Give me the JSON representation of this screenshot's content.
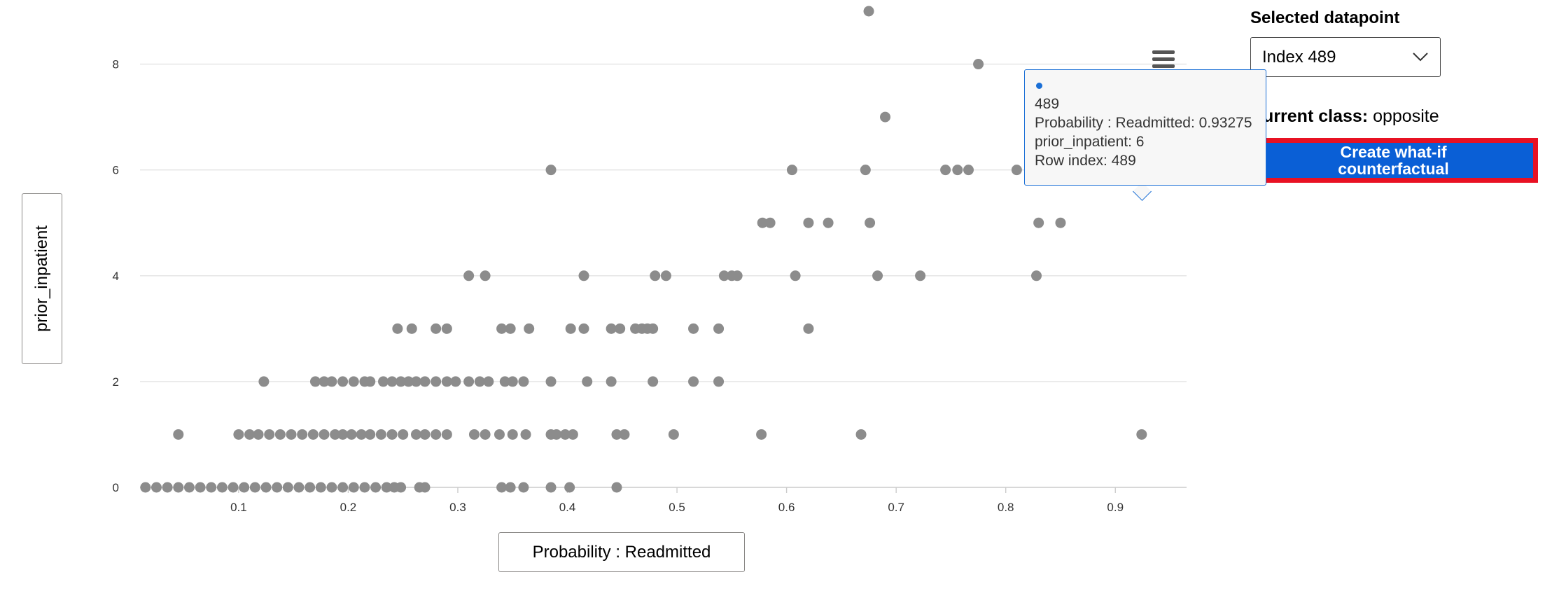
{
  "chart_data": {
    "type": "scatter",
    "xlabel": "Probability : Readmitted",
    "ylabel": "prior_inpatient",
    "xlim": [
      0.01,
      0.965
    ],
    "ylim": [
      0,
      9
    ],
    "x_ticks": [
      0.1,
      0.2,
      0.3,
      0.4,
      0.5,
      0.6,
      0.7,
      0.8,
      0.9
    ],
    "y_ticks": [
      0,
      2,
      4,
      6,
      8
    ],
    "grid": "horizontal",
    "point_color": "#8c8c8c",
    "highlight_color": "#0a5fd6",
    "points": [
      [
        0.675,
        9
      ],
      [
        0.775,
        8
      ],
      [
        0.69,
        7
      ],
      [
        0.385,
        6
      ],
      [
        0.605,
        6
      ],
      [
        0.672,
        6
      ],
      [
        0.745,
        6
      ],
      [
        0.756,
        6
      ],
      [
        0.766,
        6
      ],
      [
        0.81,
        6
      ],
      [
        0.578,
        5
      ],
      [
        0.585,
        5
      ],
      [
        0.62,
        5
      ],
      [
        0.638,
        5
      ],
      [
        0.676,
        5
      ],
      [
        0.83,
        5
      ],
      [
        0.85,
        5
      ],
      [
        0.31,
        4
      ],
      [
        0.325,
        4
      ],
      [
        0.415,
        4
      ],
      [
        0.48,
        4
      ],
      [
        0.49,
        4
      ],
      [
        0.543,
        4
      ],
      [
        0.55,
        4
      ],
      [
        0.555,
        4
      ],
      [
        0.608,
        4
      ],
      [
        0.683,
        4
      ],
      [
        0.722,
        4
      ],
      [
        0.828,
        4
      ],
      [
        0.245,
        3
      ],
      [
        0.258,
        3
      ],
      [
        0.28,
        3
      ],
      [
        0.29,
        3
      ],
      [
        0.34,
        3
      ],
      [
        0.348,
        3
      ],
      [
        0.365,
        3
      ],
      [
        0.403,
        3
      ],
      [
        0.415,
        3
      ],
      [
        0.44,
        3
      ],
      [
        0.448,
        3
      ],
      [
        0.462,
        3
      ],
      [
        0.468,
        3
      ],
      [
        0.473,
        3
      ],
      [
        0.478,
        3
      ],
      [
        0.515,
        3
      ],
      [
        0.538,
        3
      ],
      [
        0.62,
        3
      ],
      [
        0.123,
        2
      ],
      [
        0.17,
        2
      ],
      [
        0.178,
        2
      ],
      [
        0.185,
        2
      ],
      [
        0.195,
        2
      ],
      [
        0.205,
        2
      ],
      [
        0.215,
        2
      ],
      [
        0.22,
        2
      ],
      [
        0.232,
        2
      ],
      [
        0.24,
        2
      ],
      [
        0.248,
        2
      ],
      [
        0.255,
        2
      ],
      [
        0.262,
        2
      ],
      [
        0.27,
        2
      ],
      [
        0.28,
        2
      ],
      [
        0.29,
        2
      ],
      [
        0.298,
        2
      ],
      [
        0.31,
        2
      ],
      [
        0.32,
        2
      ],
      [
        0.328,
        2
      ],
      [
        0.343,
        2
      ],
      [
        0.35,
        2
      ],
      [
        0.36,
        2
      ],
      [
        0.385,
        2
      ],
      [
        0.418,
        2
      ],
      [
        0.44,
        2
      ],
      [
        0.478,
        2
      ],
      [
        0.515,
        2
      ],
      [
        0.538,
        2
      ],
      [
        0.045,
        1
      ],
      [
        0.1,
        1
      ],
      [
        0.11,
        1
      ],
      [
        0.118,
        1
      ],
      [
        0.128,
        1
      ],
      [
        0.138,
        1
      ],
      [
        0.148,
        1
      ],
      [
        0.158,
        1
      ],
      [
        0.168,
        1
      ],
      [
        0.178,
        1
      ],
      [
        0.188,
        1
      ],
      [
        0.195,
        1
      ],
      [
        0.203,
        1
      ],
      [
        0.212,
        1
      ],
      [
        0.22,
        1
      ],
      [
        0.23,
        1
      ],
      [
        0.24,
        1
      ],
      [
        0.25,
        1
      ],
      [
        0.262,
        1
      ],
      [
        0.27,
        1
      ],
      [
        0.28,
        1
      ],
      [
        0.29,
        1
      ],
      [
        0.315,
        1
      ],
      [
        0.325,
        1
      ],
      [
        0.338,
        1
      ],
      [
        0.35,
        1
      ],
      [
        0.362,
        1
      ],
      [
        0.385,
        1
      ],
      [
        0.39,
        1
      ],
      [
        0.398,
        1
      ],
      [
        0.405,
        1
      ],
      [
        0.445,
        1
      ],
      [
        0.452,
        1
      ],
      [
        0.497,
        1
      ],
      [
        0.577,
        1
      ],
      [
        0.668,
        1
      ],
      [
        0.924,
        1
      ],
      [
        0.015,
        0
      ],
      [
        0.025,
        0
      ],
      [
        0.035,
        0
      ],
      [
        0.045,
        0
      ],
      [
        0.055,
        0
      ],
      [
        0.065,
        0
      ],
      [
        0.075,
        0
      ],
      [
        0.085,
        0
      ],
      [
        0.095,
        0
      ],
      [
        0.105,
        0
      ],
      [
        0.115,
        0
      ],
      [
        0.125,
        0
      ],
      [
        0.135,
        0
      ],
      [
        0.145,
        0
      ],
      [
        0.155,
        0
      ],
      [
        0.165,
        0
      ],
      [
        0.175,
        0
      ],
      [
        0.185,
        0
      ],
      [
        0.195,
        0
      ],
      [
        0.205,
        0
      ],
      [
        0.215,
        0
      ],
      [
        0.225,
        0
      ],
      [
        0.235,
        0
      ],
      [
        0.242,
        0
      ],
      [
        0.248,
        0
      ],
      [
        0.265,
        0
      ],
      [
        0.27,
        0
      ],
      [
        0.34,
        0
      ],
      [
        0.348,
        0
      ],
      [
        0.36,
        0
      ],
      [
        0.385,
        0
      ],
      [
        0.402,
        0
      ],
      [
        0.445,
        0
      ]
    ],
    "selected_point": {
      "x": 0.93275,
      "y": 6,
      "row_index": 489
    }
  },
  "tooltip": {
    "title": "489",
    "line1": "Probability : Readmitted: 0.93275",
    "line2": "prior_inpatient: 6",
    "line3": "Row index: 489"
  },
  "panel": {
    "selected_label": "Selected datapoint",
    "selected_value": "Index 489",
    "class_label": "Current class:",
    "class_value": "opposite",
    "button_label": "Create what-if counterfactual"
  },
  "icons": {
    "menu": "hamburger-menu-icon",
    "dropdown": "chevron-down-icon"
  }
}
